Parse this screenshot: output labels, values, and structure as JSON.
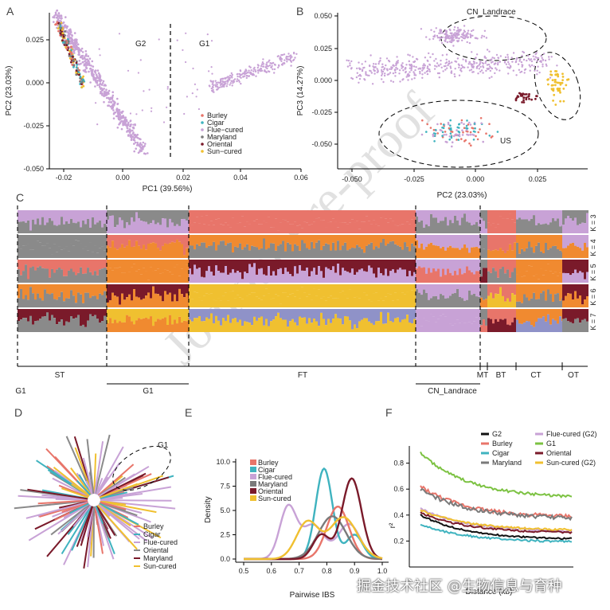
{
  "panels": {
    "a": "A",
    "b": "B",
    "c": "C",
    "d": "D",
    "e": "E",
    "f": "F"
  },
  "colors": {
    "Burley": "#e8756a",
    "Cigar": "#3fb3bf",
    "Flue-cured": "#c8a2d6",
    "Maryland": "#7a7a7a",
    "Oriental": "#7a1a2a",
    "Sun-cured": "#f0c030",
    "G1": "#7cc242",
    "G2": "#111111",
    "grey": "#8a8a8a",
    "orange": "#f08a30"
  },
  "watermark": "Journal Pre-proof",
  "footer": "掘金技术社区 @生物信息与育种",
  "panelA": {
    "xlabel": "PC1 (39.56%)",
    "ylabel": "PC2 (23.03%)",
    "xticks": [
      "-0.02",
      "0.00",
      "0.02",
      "0.04",
      "0.06"
    ],
    "yticks": [
      "0.025",
      "0.000",
      "-0.025",
      "-0.050"
    ],
    "group_labels": [
      "G2",
      "G1"
    ],
    "legend": [
      "Burley",
      "Cigar",
      "Flue−cured",
      "Maryland",
      "Oriental",
      "Sun−cured"
    ]
  },
  "panelB": {
    "xlabel": "PC2 (23.03%)",
    "ylabel": "PC3 (14.27%)",
    "xticks": [
      "-0.050",
      "-0.025",
      "0.000",
      "0.025"
    ],
    "yticks": [
      "0.050",
      "0.025",
      "0.000",
      "-0.025",
      "-0.050"
    ],
    "group_labels": [
      "CN_Landrace",
      "US"
    ]
  },
  "panelC": {
    "k_labels": [
      "K = 3",
      "K = 4",
      "K = 5",
      "K = 6",
      "K = 7"
    ],
    "top_groups": [
      "ST",
      "FT",
      "MT",
      "BT",
      "CT",
      "OT"
    ],
    "bottom_groups": [
      "G1",
      "G1",
      "CN_Landrace"
    ]
  },
  "panelD": {
    "group_label": "G1",
    "legend": [
      "Burley",
      "Cigar",
      "Flue-cured",
      "Oriental",
      "Maryland",
      "Sun-cured"
    ]
  },
  "panelE": {
    "xlabel": "Pairwise IBS",
    "ylabel": "Density",
    "xticks": [
      "0.5",
      "0.6",
      "0.7",
      "0.8",
      "0.9",
      "1.0"
    ],
    "yticks": [
      "0.0",
      "2.5",
      "5.0",
      "7.5",
      "10.0"
    ],
    "legend": [
      "Burley",
      "Cigar",
      "Flue-cured",
      "Maryland",
      "Oriental",
      "Sun-cured"
    ]
  },
  "panelF": {
    "xlabel": "Distance (kb)",
    "ylabel": "r²",
    "yticks": [
      "0.2",
      "0.4",
      "0.6",
      "0.8"
    ],
    "legend_left": [
      "G2",
      "Burley",
      "Cigar",
      "Maryland"
    ],
    "legend_right": [
      "Flue-cured (G2)",
      "G1",
      "Oriental",
      "Sun-cured (G2)"
    ]
  }
}
